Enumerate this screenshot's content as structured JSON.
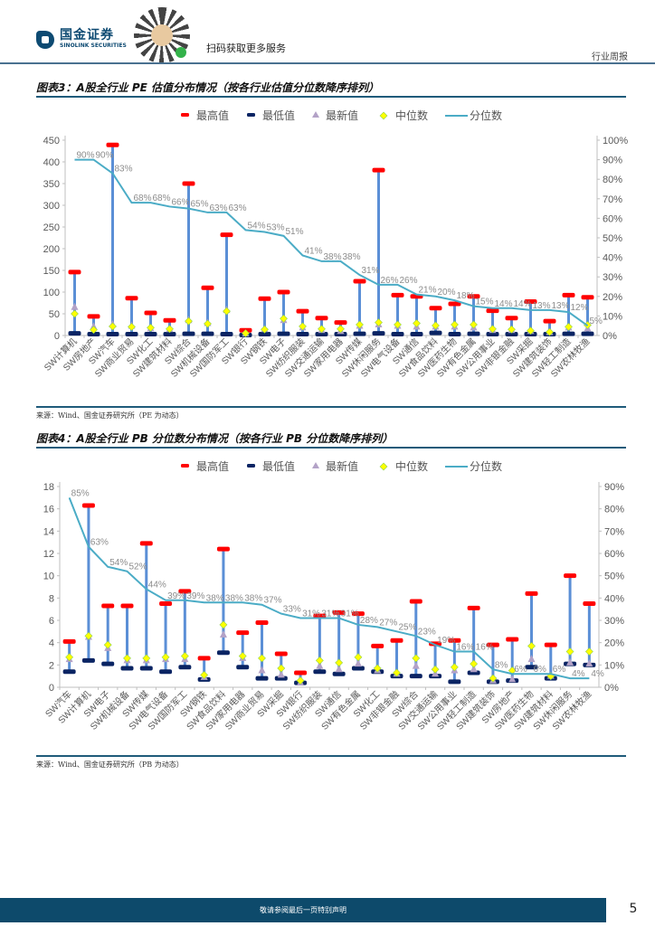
{
  "header": {
    "company_cn": "国金证券",
    "company_en": "SINOLINK SECURITIES",
    "qr_caption": "扫码获取更多服务",
    "doc_type": "行业周报"
  },
  "figures": [
    {
      "title": "图表3：A股全行业 PE 估值分布情况（按各行业估值分位数降序排列）",
      "source": "来源：Wind、国金证券研究所（PE 为动态）"
    },
    {
      "title": "图表4：A股全行业 PB 分位数分布情况（按各行业 PB 分位数降序排列）",
      "source": "来源：Wind、国金证券研究所（PB 为动态）"
    }
  ],
  "legend": {
    "max": "最高值",
    "min": "最低值",
    "latest": "最新值",
    "median": "中位数",
    "pct": "分位数"
  },
  "colors": {
    "max": "#ff0000",
    "min": "#0a2463",
    "latest": "#b3a2c7",
    "median": "#ffff00",
    "pct": "#4bacc6",
    "bar": "#5b8fd6"
  },
  "chart_data": [
    {
      "type": "line",
      "title": "A股全行业 PE 估值分布情况",
      "ylim": [
        0,
        450
      ],
      "yticks": [
        "0",
        "50",
        "100",
        "150",
        "200",
        "250",
        "300",
        "350",
        "400",
        "450"
      ],
      "y2lim": [
        0,
        100
      ],
      "y2ticks": [
        "0%",
        "10%",
        "20%",
        "30%",
        "40%",
        "50%",
        "60%",
        "70%",
        "80%",
        "90%",
        "100%"
      ],
      "categories": [
        "SW计算机",
        "SW房地产",
        "SW汽车",
        "SW商业贸易",
        "SW化工",
        "SW建筑材料",
        "SW综合",
        "SW机械设备",
        "SW国防军工",
        "SW银行",
        "SW钢铁",
        "SW电子",
        "SW纺织服装",
        "SW交通运输",
        "SW家用电器",
        "SW传媒",
        "SW休闲服务",
        "SW电气设备",
        "SW通信",
        "SW食品饮料",
        "SW医药生物",
        "SW有色金属",
        "SW公用事业",
        "SW非银金融",
        "SW采掘",
        "SW建筑装饰",
        "SW轻工制造",
        "SW农林牧渔"
      ],
      "series": [
        {
          "name": "最高值",
          "values": [
            146,
            44,
            439,
            86,
            52,
            35,
            350,
            110,
            232,
            12,
            85,
            100,
            56,
            40,
            30,
            125,
            381,
            93,
            90,
            63,
            73,
            90,
            57,
            40,
            78,
            33,
            93,
            88
          ]
        },
        {
          "name": "最低值",
          "values": [
            5,
            3,
            3,
            3,
            3,
            3,
            4,
            4,
            3,
            1,
            3,
            4,
            3,
            3,
            3,
            4,
            5,
            3,
            3,
            6,
            3,
            4,
            3,
            3,
            3,
            3,
            4,
            4
          ]
        },
        {
          "name": "最新值",
          "values": [
            65,
            20,
            25,
            22,
            16,
            14,
            35,
            28,
            58,
            4,
            14,
            35,
            18,
            12,
            10,
            22,
            25,
            22,
            20,
            20,
            20,
            18,
            12,
            12,
            10,
            7,
            18,
            16
          ]
        },
        {
          "name": "中位数",
          "values": [
            50,
            13,
            21,
            20,
            18,
            15,
            33,
            27,
            56,
            5,
            14,
            39,
            21,
            15,
            15,
            25,
            30,
            25,
            28,
            23,
            25,
            25,
            15,
            14,
            11,
            8,
            20,
            24
          ]
        },
        {
          "name": "分位数",
          "axis": "right",
          "values": [
            90,
            90,
            83,
            68,
            68,
            66,
            65,
            63,
            63,
            54,
            53,
            51,
            41,
            38,
            38,
            31,
            26,
            26,
            21,
            20,
            18,
            15,
            14,
            14,
            13,
            13,
            12,
            5
          ]
        }
      ],
      "pct_labels": [
        "90%",
        "90%",
        "83%",
        "68%",
        "68%",
        "66%",
        "65%",
        "63%",
        "63%",
        "54%",
        "53%",
        "51%",
        "41%",
        "38%",
        "38%",
        "31%",
        "26%",
        "26%",
        "21%",
        "20%",
        "18%",
        "15%",
        "14%",
        "14%",
        "13%",
        "13%",
        "12%",
        "5%"
      ]
    },
    {
      "type": "line",
      "title": "A股全行业 PB 分位数分布情况",
      "ylim": [
        0,
        18
      ],
      "yticks": [
        "0",
        "2",
        "4",
        "6",
        "8",
        "10",
        "12",
        "14",
        "16",
        "18"
      ],
      "y2lim": [
        0,
        90
      ],
      "y2ticks": [
        "0%",
        "10%",
        "20%",
        "30%",
        "40%",
        "50%",
        "60%",
        "70%",
        "80%",
        "90%"
      ],
      "categories": [
        "SW汽车",
        "SW计算机",
        "SW电子",
        "SW机械设备",
        "SW传媒",
        "SW电气设备",
        "SW国防军工",
        "SW钢铁",
        "SW食品饮料",
        "SW家用电器",
        "SW商业贸易",
        "SW采掘",
        "SW银行",
        "SW纺织服装",
        "SW通信",
        "SW有色金属",
        "SW化工",
        "SW非银金融",
        "SW综合",
        "SW交通运输",
        "SW公用事业",
        "SW轻工制造",
        "SW建筑装饰",
        "SW房地产",
        "SW医药生物",
        "SW建筑材料",
        "SW休闲服务",
        "SW农林牧渔"
      ],
      "series": [
        {
          "name": "最高值",
          "values": [
            4.1,
            16.3,
            7.3,
            7.3,
            12.9,
            7.5,
            8.6,
            2.6,
            12.4,
            4.9,
            5.8,
            3.0,
            1.3,
            6.4,
            6.7,
            6.6,
            3.7,
            4.2,
            7.7,
            3.9,
            4.2,
            7.1,
            3.8,
            4.3,
            8.4,
            3.8,
            10.0,
            7.5
          ]
        },
        {
          "name": "最低值",
          "values": [
            1.4,
            2.4,
            2.1,
            1.7,
            1.7,
            1.4,
            1.8,
            0.7,
            3.1,
            1.8,
            0.8,
            0.8,
            0.4,
            1.4,
            1.2,
            1.7,
            1.4,
            1.0,
            1.0,
            1.0,
            0.5,
            1.3,
            0.5,
            0.6,
            1.8,
            0.8,
            2.1,
            2.0
          ]
        },
        {
          "name": "最新值",
          "values": [
            2.5,
            4.5,
            3.5,
            2.4,
            2.4,
            2.5,
            2.5,
            0.9,
            4.7,
            2.6,
            1.5,
            1.1,
            0.4,
            1.9,
            1.6,
            2.1,
            1.5,
            1.2,
            1.9,
            1.2,
            1.5,
            1.6,
            0.6,
            0.7,
            2.5,
            1.0,
            2.2,
            2.1
          ]
        },
        {
          "name": "中位数",
          "values": [
            2.7,
            4.6,
            3.8,
            2.6,
            2.6,
            2.7,
            2.8,
            1.1,
            5.6,
            2.8,
            2.6,
            1.7,
            0.6,
            2.4,
            2.2,
            2.7,
            1.7,
            1.3,
            2.6,
            1.6,
            1.8,
            2.1,
            0.8,
            1.5,
            3.7,
            1.0,
            3.2,
            3.2
          ]
        },
        {
          "name": "分位数",
          "axis": "right",
          "values": [
            85,
            63,
            54,
            52,
            44,
            39,
            39,
            38,
            38,
            38,
            37,
            33,
            31,
            31,
            31,
            28,
            27,
            25,
            23,
            19,
            16,
            16,
            8,
            6,
            6,
            6,
            4,
            4
          ]
        }
      ],
      "pct_labels": [
        "85%",
        "63%",
        "54%",
        "52%",
        "44%",
        "39%",
        "39%",
        "38%",
        "38%",
        "38%",
        "37%",
        "33%",
        "31%",
        "31%",
        "31%",
        "28%",
        "27%",
        "25%",
        "23%",
        "19%",
        "16%",
        "16%",
        "8%",
        "6%",
        "6%",
        "6%",
        "4%",
        "4%"
      ]
    }
  ],
  "footer": {
    "disclaimer": "敬请参阅最后一页特别声明",
    "page_number": "5"
  }
}
